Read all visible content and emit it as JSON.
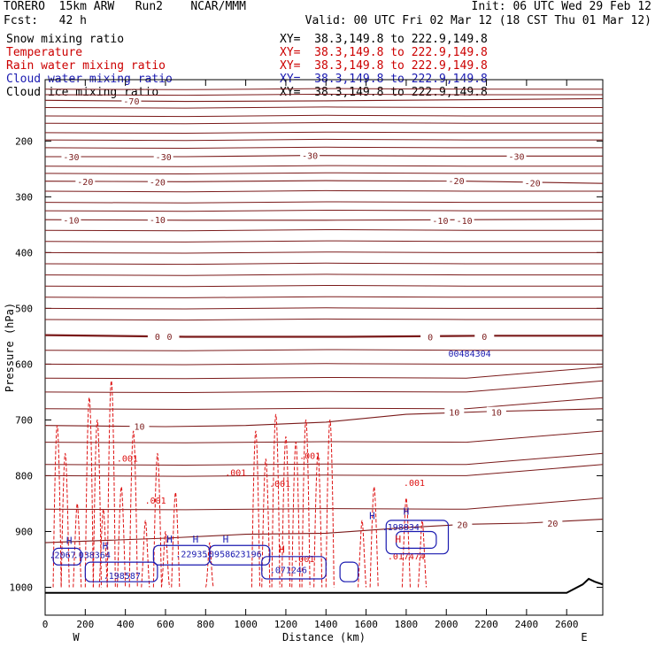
{
  "header": {
    "title_left": "TORERO  15km ARW   Run2    NCAR/MMM",
    "init": "Init: 06 UTC Wed 29 Feb 12",
    "fcst": "Fcst:   42 h",
    "valid": "Valid: 00 UTC Fri 02 Mar 12 (18 CST Thu 01 Mar 12)",
    "fields": [
      {
        "name": "Snow mixing ratio",
        "xy": "XY=  38.3,149.8 to 222.9,149.8",
        "color": "#000000"
      },
      {
        "name": "Temperature",
        "xy": "XY=  38.3,149.8 to 222.9,149.8",
        "color": "#cc0000"
      },
      {
        "name": "Rain water mixing ratio",
        "xy": "XY=  38.3,149.8 to 222.9,149.8",
        "color": "#cc0000"
      },
      {
        "name": "Cloud water mixing ratio",
        "xy": "XY=  38.3,149.8 to 222.9,149.8",
        "color": "#1a1ab0"
      },
      {
        "name": "Cloud ice mixing ratio",
        "xy": "XY=  38.3,149.8 to 222.9,149.8",
        "color": "#000000"
      }
    ]
  },
  "chart_data": {
    "type": "line",
    "xlabel": "Distance (km)",
    "ylabel": "Pressure (hPa)",
    "xlim": [
      0,
      2780
    ],
    "ylim": [
      1050,
      90
    ],
    "x_ticks": [
      0,
      200,
      400,
      600,
      800,
      1000,
      1200,
      1400,
      1600,
      1800,
      2000,
      2200,
      2400,
      2600
    ],
    "y_ticks": [
      200,
      300,
      400,
      500,
      600,
      700,
      800,
      900,
      1000
    ],
    "left_end_label": "W",
    "right_end_label": "E",
    "temperature_isotherms": [
      {
        "label": "-70",
        "label_x": 430,
        "p": [
          [
            0,
            127
          ],
          [
            700,
            129
          ],
          [
            1400,
            128
          ],
          [
            2100,
            126
          ],
          [
            2780,
            124
          ]
        ]
      },
      {
        "label": "-30",
        "label_x": 130,
        "p": [
          [
            0,
            228
          ],
          [
            700,
            228
          ],
          [
            1300,
            226
          ],
          [
            2000,
            227
          ],
          [
            2780,
            227
          ]
        ]
      },
      {
        "label": "-20",
        "label_x": 200,
        "p": [
          [
            0,
            272
          ],
          [
            700,
            273
          ],
          [
            1400,
            271
          ],
          [
            2100,
            272
          ],
          [
            2780,
            276
          ]
        ]
      },
      {
        "label": "-10",
        "label_x": 130,
        "p": [
          [
            0,
            341
          ],
          [
            700,
            342
          ],
          [
            1400,
            342
          ],
          [
            2100,
            341
          ],
          [
            2780,
            340
          ]
        ]
      },
      {
        "label": "0",
        "label_x": 560,
        "p": [
          [
            0,
            548
          ],
          [
            700,
            551
          ],
          [
            1500,
            551
          ],
          [
            2200,
            549
          ],
          [
            2780,
            549
          ]
        ]
      },
      {
        "label": "10",
        "label_x": 470,
        "p": [
          [
            0,
            710
          ],
          [
            600,
            712
          ],
          [
            1000,
            710
          ],
          [
            1400,
            704
          ],
          [
            1800,
            690
          ],
          [
            2200,
            685
          ],
          [
            2780,
            680
          ]
        ]
      },
      {
        "label": "20",
        "label_x": 2080,
        "p": [
          [
            0,
            920
          ],
          [
            600,
            912
          ],
          [
            1000,
            905
          ],
          [
            1400,
            903
          ],
          [
            1800,
            893
          ],
          [
            2100,
            887
          ],
          [
            2400,
            885
          ],
          [
            2780,
            878
          ]
        ]
      }
    ],
    "temperature_extra_labels": [
      {
        "label": "-30",
        "x": 590,
        "p": 228
      },
      {
        "label": "-30",
        "x": 1320,
        "p": 226
      },
      {
        "label": "-30",
        "x": 2350,
        "p": 227
      },
      {
        "label": "-20",
        "x": 560,
        "p": 273
      },
      {
        "label": "-20",
        "x": 2050,
        "p": 271
      },
      {
        "label": "-20",
        "x": 2430,
        "p": 275
      },
      {
        "label": "-10",
        "x": 560,
        "p": 341
      },
      {
        "label": "-10",
        "x": 1970,
        "p": 342
      },
      {
        "label": "-10",
        "x": 2090,
        "p": 342
      },
      {
        "label": "0",
        "x": 620,
        "p": 550
      },
      {
        "label": "0",
        "x": 1920,
        "p": 551
      },
      {
        "label": "0",
        "x": 2190,
        "p": 550
      },
      {
        "label": "10",
        "x": 2040,
        "p": 686
      },
      {
        "label": "10",
        "x": 2250,
        "p": 686
      },
      {
        "label": "20",
        "x": 2530,
        "p": 885
      }
    ],
    "rain_water_labels": [
      ".001",
      ".001",
      ".001",
      ".001",
      ".001",
      ".001",
      ".001",
      ".017474"
    ],
    "rain_water_label_pos": [
      [
        410,
        775
      ],
      [
        550,
        850
      ],
      [
        950,
        800
      ],
      [
        1170,
        820
      ],
      [
        1320,
        770
      ],
      [
        1840,
        818
      ],
      [
        1290,
        955
      ],
      [
        1800,
        950
      ]
    ],
    "cloud_water_labels": [
      ".2067",
      ".038364",
      ".198587",
      ".22935",
      ".09586",
      ".23196",
      ".071246",
      ".198834",
      "00484304"
    ],
    "cloud_water_label_pos": [
      [
        20,
        948
      ],
      [
        140,
        948
      ],
      [
        290,
        985
      ],
      [
        650,
        946
      ],
      [
        790,
        946
      ],
      [
        920,
        946
      ],
      [
        1120,
        975
      ],
      [
        1680,
        898
      ],
      [
        2010,
        587
      ]
    ],
    "high_markers": [
      "H",
      "H",
      "H",
      "H",
      "H",
      "H",
      "H",
      "H",
      "H"
    ],
    "high_marker_pos": [
      [
        120,
        922
      ],
      [
        300,
        932
      ],
      [
        620,
        920
      ],
      [
        750,
        920
      ],
      [
        900,
        920
      ],
      [
        1180,
        938
      ],
      [
        1630,
        878
      ],
      [
        1760,
        920
      ],
      [
        1800,
        870
      ]
    ],
    "terrain_surface": [
      [
        0,
        1010
      ],
      [
        1400,
        1010
      ],
      [
        2600,
        1010
      ],
      [
        2680,
        995
      ],
      [
        2710,
        985
      ],
      [
        2740,
        990
      ],
      [
        2780,
        995
      ]
    ]
  }
}
